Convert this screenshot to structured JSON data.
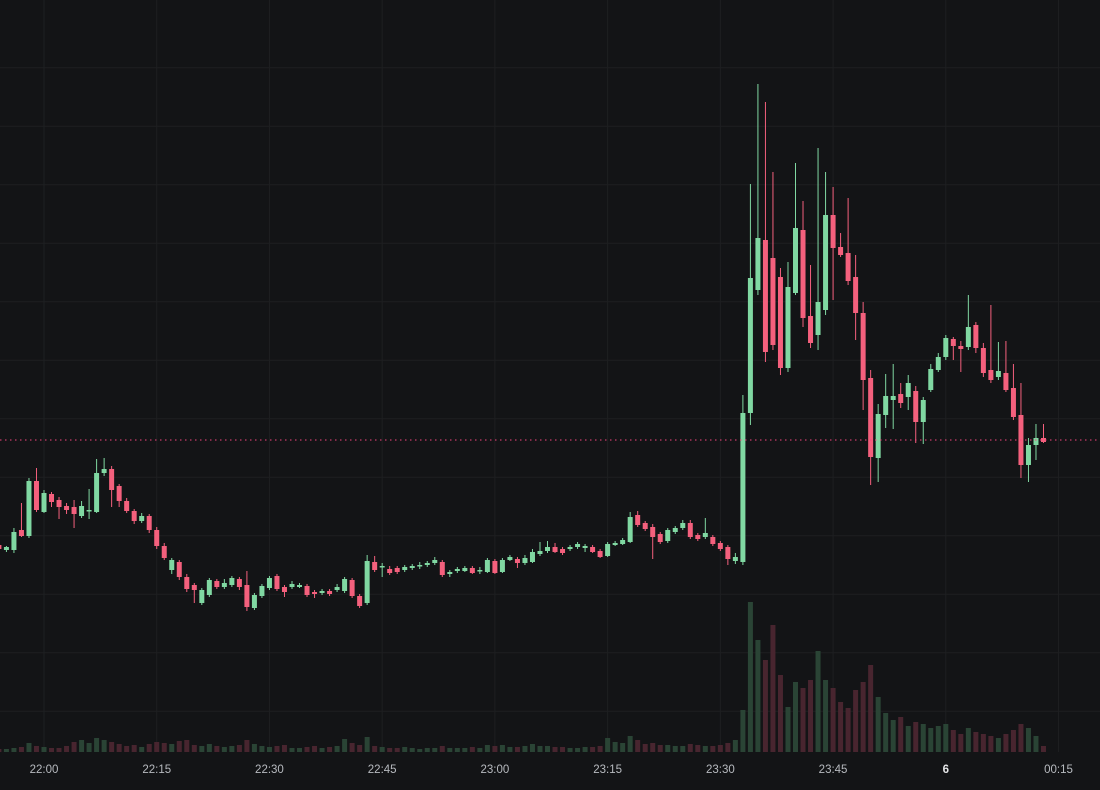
{
  "chart_data": {
    "type": "candlestick",
    "title": "",
    "interval": "1m",
    "x_start_time": "21:54",
    "y_axis": "none visible (price scale cropped out of view); values are relative units, higher = higher price",
    "legend": "none",
    "grid": "on",
    "price_line": {
      "value": 350,
      "style": "dotted",
      "color": "#f5457e"
    },
    "x_ticks": [
      {
        "label": "22:00",
        "min": 0,
        "bold": false
      },
      {
        "label": "22:15",
        "min": 15,
        "bold": false
      },
      {
        "label": "22:30",
        "min": 30,
        "bold": false
      },
      {
        "label": "22:45",
        "min": 45,
        "bold": false
      },
      {
        "label": "23:00",
        "min": 60,
        "bold": false
      },
      {
        "label": "23:15",
        "min": 75,
        "bold": false
      },
      {
        "label": "23:30",
        "min": 90,
        "bold": false
      },
      {
        "label": "23:45",
        "min": 105,
        "bold": false
      },
      {
        "label": "6",
        "min": 120,
        "bold": true
      },
      {
        "label": "00:15",
        "min": 135,
        "bold": false
      }
    ],
    "colors": {
      "background": "#131416",
      "grid": "#1e1f21",
      "up": "#80d8a2",
      "down": "#f4607d",
      "volume_up": "#2a4435",
      "volume_down": "#48252f",
      "axis_text": "#b7babf",
      "axis_text_day": "#e6e7e9"
    },
    "columns": [
      "time",
      "open",
      "high",
      "low",
      "close",
      "volume"
    ],
    "candles": [
      [
        "21:54",
        245,
        248,
        239,
        241,
        3
      ],
      [
        "21:55",
        240,
        244,
        238,
        243,
        3
      ],
      [
        "21:56",
        240,
        262,
        237,
        258,
        4
      ],
      [
        "21:57",
        260,
        287,
        253,
        254,
        5
      ],
      [
        "21:58",
        254,
        312,
        252,
        309,
        9
      ],
      [
        "21:59",
        309,
        322,
        278,
        280,
        6
      ],
      [
        "22:00",
        278,
        300,
        277,
        297,
        5
      ],
      [
        "22:01",
        296,
        298,
        283,
        288,
        4
      ],
      [
        "22:02",
        290,
        293,
        271,
        283,
        4
      ],
      [
        "22:03",
        284,
        287,
        276,
        280,
        6
      ],
      [
        "22:04",
        283,
        290,
        262,
        276,
        10
      ],
      [
        "22:05",
        274,
        289,
        272,
        284,
        12
      ],
      [
        "22:06",
        279,
        301,
        271,
        280,
        9
      ],
      [
        "22:07",
        278,
        331,
        277,
        317,
        14
      ],
      [
        "22:08",
        317,
        332,
        314,
        321,
        12
      ],
      [
        "22:09",
        321,
        324,
        283,
        300,
        10
      ],
      [
        "22:10",
        304,
        306,
        283,
        289,
        8
      ],
      [
        "22:11",
        289,
        292,
        277,
        279,
        6
      ],
      [
        "22:12",
        279,
        281,
        266,
        269,
        7
      ],
      [
        "22:13",
        269,
        277,
        267,
        274,
        5
      ],
      [
        "22:14",
        274,
        276,
        257,
        260,
        8
      ],
      [
        "22:15",
        260,
        263,
        241,
        244,
        10
      ],
      [
        "22:16",
        244,
        247,
        230,
        232,
        9
      ],
      [
        "22:17",
        220,
        232,
        216,
        230,
        8
      ],
      [
        "22:18",
        228,
        230,
        210,
        213,
        11
      ],
      [
        "22:19",
        213,
        216,
        198,
        201,
        12
      ],
      [
        "22:20",
        205,
        207,
        187,
        200,
        7
      ],
      [
        "22:21",
        187,
        202,
        185,
        200,
        6
      ],
      [
        "22:22",
        195,
        212,
        193,
        210,
        8
      ],
      [
        "22:23",
        209,
        211,
        201,
        203,
        6
      ],
      [
        "22:24",
        203,
        211,
        201,
        207,
        5
      ],
      [
        "22:25",
        205,
        214,
        203,
        212,
        6
      ],
      [
        "22:26",
        211,
        213,
        200,
        203,
        7
      ],
      [
        "22:27",
        205,
        219,
        179,
        183,
        12
      ],
      [
        "22:28",
        182,
        197,
        180,
        195,
        8
      ],
      [
        "22:29",
        194,
        206,
        192,
        204,
        6
      ],
      [
        "22:30",
        202,
        214,
        200,
        212,
        5
      ],
      [
        "22:31",
        214,
        216,
        199,
        201,
        6
      ],
      [
        "22:32",
        203,
        205,
        193,
        198,
        7
      ],
      [
        "22:33",
        203,
        209,
        201,
        206,
        4
      ],
      [
        "22:34",
        203,
        207,
        202,
        205,
        4
      ],
      [
        "22:35",
        204,
        206,
        193,
        195,
        5
      ],
      [
        "22:36",
        198,
        200,
        192,
        196,
        6
      ],
      [
        "22:37",
        197,
        201,
        195,
        199,
        4
      ],
      [
        "22:38",
        199,
        201,
        194,
        196,
        5
      ],
      [
        "22:39",
        200,
        206,
        198,
        203,
        6
      ],
      [
        "22:40",
        199,
        213,
        197,
        211,
        13
      ],
      [
        "22:41",
        210,
        212,
        192,
        194,
        9
      ],
      [
        "22:42",
        194,
        196,
        182,
        184,
        7
      ],
      [
        "22:43",
        187,
        235,
        185,
        229,
        15
      ],
      [
        "22:44",
        228,
        234,
        218,
        220,
        6
      ],
      [
        "22:45",
        223,
        227,
        213,
        224,
        5
      ],
      [
        "22:46",
        221,
        224,
        215,
        217,
        4
      ],
      [
        "22:47",
        222,
        224,
        216,
        218,
        4
      ],
      [
        "22:48",
        220,
        225,
        218,
        223,
        5
      ],
      [
        "22:49",
        222,
        226,
        220,
        224,
        4
      ],
      [
        "22:50",
        224,
        228,
        221,
        225,
        3
      ],
      [
        "22:51",
        225,
        229,
        223,
        227,
        4
      ],
      [
        "22:52",
        227,
        233,
        225,
        230,
        4
      ],
      [
        "22:53",
        228,
        230,
        213,
        215,
        6
      ],
      [
        "22:54",
        216,
        220,
        213,
        218,
        4
      ],
      [
        "22:55",
        219,
        223,
        217,
        221,
        4
      ],
      [
        "22:56",
        219,
        224,
        218,
        222,
        4
      ],
      [
        "22:57",
        222,
        224,
        216,
        217,
        5
      ],
      [
        "22:58",
        219,
        223,
        216,
        220,
        4
      ],
      [
        "22:59",
        218,
        232,
        217,
        230,
        7
      ],
      [
        "23:00",
        229,
        231,
        216,
        217,
        6
      ],
      [
        "23:01",
        218,
        232,
        217,
        230,
        7
      ],
      [
        "23:02",
        230,
        235,
        229,
        233,
        5
      ],
      [
        "23:03",
        231,
        233,
        222,
        227,
        5
      ],
      [
        "23:04",
        227,
        235,
        225,
        232,
        6
      ],
      [
        "23:05",
        228,
        241,
        227,
        238,
        8
      ],
      [
        "23:06",
        236,
        248,
        234,
        239,
        6
      ],
      [
        "23:07",
        239,
        249,
        237,
        243,
        6
      ],
      [
        "23:08",
        243,
        247,
        237,
        238,
        5
      ],
      [
        "23:09",
        241,
        243,
        235,
        237,
        5
      ],
      [
        "23:10",
        241,
        245,
        239,
        243,
        4
      ],
      [
        "23:11",
        243,
        248,
        241,
        246,
        4
      ],
      [
        "23:12",
        242,
        246,
        238,
        244,
        5
      ],
      [
        "23:13",
        243,
        245,
        237,
        238,
        5
      ],
      [
        "23:14",
        239,
        241,
        232,
        233,
        6
      ],
      [
        "23:15",
        234,
        248,
        233,
        246,
        14
      ],
      [
        "23:16",
        245,
        249,
        244,
        247,
        10
      ],
      [
        "23:17",
        246,
        252,
        245,
        250,
        9
      ],
      [
        "23:18",
        248,
        278,
        247,
        273,
        16
      ],
      [
        "23:19",
        275,
        279,
        263,
        265,
        12
      ],
      [
        "23:20",
        267,
        269,
        259,
        261,
        8
      ],
      [
        "23:21",
        263,
        266,
        231,
        253,
        9
      ],
      [
        "23:22",
        256,
        258,
        246,
        248,
        7
      ],
      [
        "23:23",
        249,
        262,
        247,
        260,
        7
      ],
      [
        "23:24",
        258,
        264,
        256,
        262,
        6
      ],
      [
        "23:25",
        262,
        270,
        260,
        267,
        6
      ],
      [
        "23:26",
        267,
        270,
        251,
        253,
        8
      ],
      [
        "23:27",
        255,
        257,
        249,
        251,
        7
      ],
      [
        "23:28",
        253,
        272,
        251,
        257,
        6
      ],
      [
        "23:29",
        253,
        255,
        244,
        246,
        6
      ],
      [
        "23:30",
        247,
        249,
        239,
        241,
        7
      ],
      [
        "23:31",
        243,
        245,
        225,
        231,
        9
      ],
      [
        "23:32",
        229,
        237,
        226,
        233,
        12
      ],
      [
        "23:33",
        228,
        395,
        225,
        377,
        42
      ],
      [
        "23:34",
        377,
        606,
        365,
        512,
        150
      ],
      [
        "23:35",
        500,
        706,
        495,
        552,
        112
      ],
      [
        "23:36",
        550,
        688,
        428,
        438,
        92
      ],
      [
        "23:37",
        532,
        618,
        440,
        445,
        127
      ],
      [
        "23:38",
        513,
        522,
        415,
        422,
        77
      ],
      [
        "23:39",
        422,
        528,
        418,
        503,
        45
      ],
      [
        "23:40",
        497,
        627,
        495,
        562,
        70
      ],
      [
        "23:41",
        560,
        589,
        463,
        472,
        64
      ],
      [
        "23:42",
        474,
        525,
        442,
        447,
        72
      ],
      [
        "23:43",
        455,
        642,
        440,
        488,
        101
      ],
      [
        "23:44",
        480,
        618,
        475,
        575,
        72
      ],
      [
        "23:45",
        575,
        603,
        490,
        542,
        64
      ],
      [
        "23:46",
        543,
        557,
        533,
        535,
        50
      ],
      [
        "23:47",
        537,
        592,
        505,
        509,
        44
      ],
      [
        "23:48",
        513,
        535,
        450,
        477,
        62
      ],
      [
        "23:49",
        477,
        488,
        380,
        410,
        70
      ],
      [
        "23:50",
        412,
        420,
        305,
        333,
        87
      ],
      [
        "23:51",
        332,
        386,
        308,
        376,
        55
      ],
      [
        "23:52",
        375,
        416,
        362,
        394,
        39
      ],
      [
        "23:53",
        390,
        426,
        361,
        394,
        32
      ],
      [
        "23:54",
        396,
        407,
        382,
        387,
        35
      ],
      [
        "23:55",
        393,
        415,
        380,
        407,
        26
      ],
      [
        "23:56",
        399,
        404,
        347,
        368,
        30
      ],
      [
        "23:57",
        368,
        393,
        346,
        390,
        28
      ],
      [
        "23:58",
        400,
        426,
        398,
        421,
        24
      ],
      [
        "23:59",
        420,
        437,
        418,
        433,
        26
      ],
      [
        "00:00",
        433,
        455,
        430,
        452,
        28
      ],
      [
        "00:01",
        451,
        453,
        430,
        444,
        22
      ],
      [
        "00:02",
        444,
        449,
        418,
        441,
        18
      ],
      [
        "00:03",
        443,
        495,
        440,
        463,
        24
      ],
      [
        "00:04",
        465,
        468,
        437,
        442,
        20
      ],
      [
        "00:05",
        442,
        447,
        413,
        417,
        18
      ],
      [
        "00:06",
        420,
        485,
        407,
        410,
        16
      ],
      [
        "00:07",
        413,
        448,
        410,
        419,
        14
      ],
      [
        "00:08",
        417,
        449,
        398,
        400,
        18
      ],
      [
        "00:09",
        402,
        426,
        370,
        373,
        22
      ],
      [
        "00:10",
        375,
        407,
        312,
        325,
        28
      ],
      [
        "00:11",
        325,
        352,
        308,
        345,
        24
      ],
      [
        "00:12",
        345,
        366,
        330,
        352,
        16
      ],
      [
        "00:13",
        352,
        366,
        347,
        348,
        6
      ]
    ]
  }
}
